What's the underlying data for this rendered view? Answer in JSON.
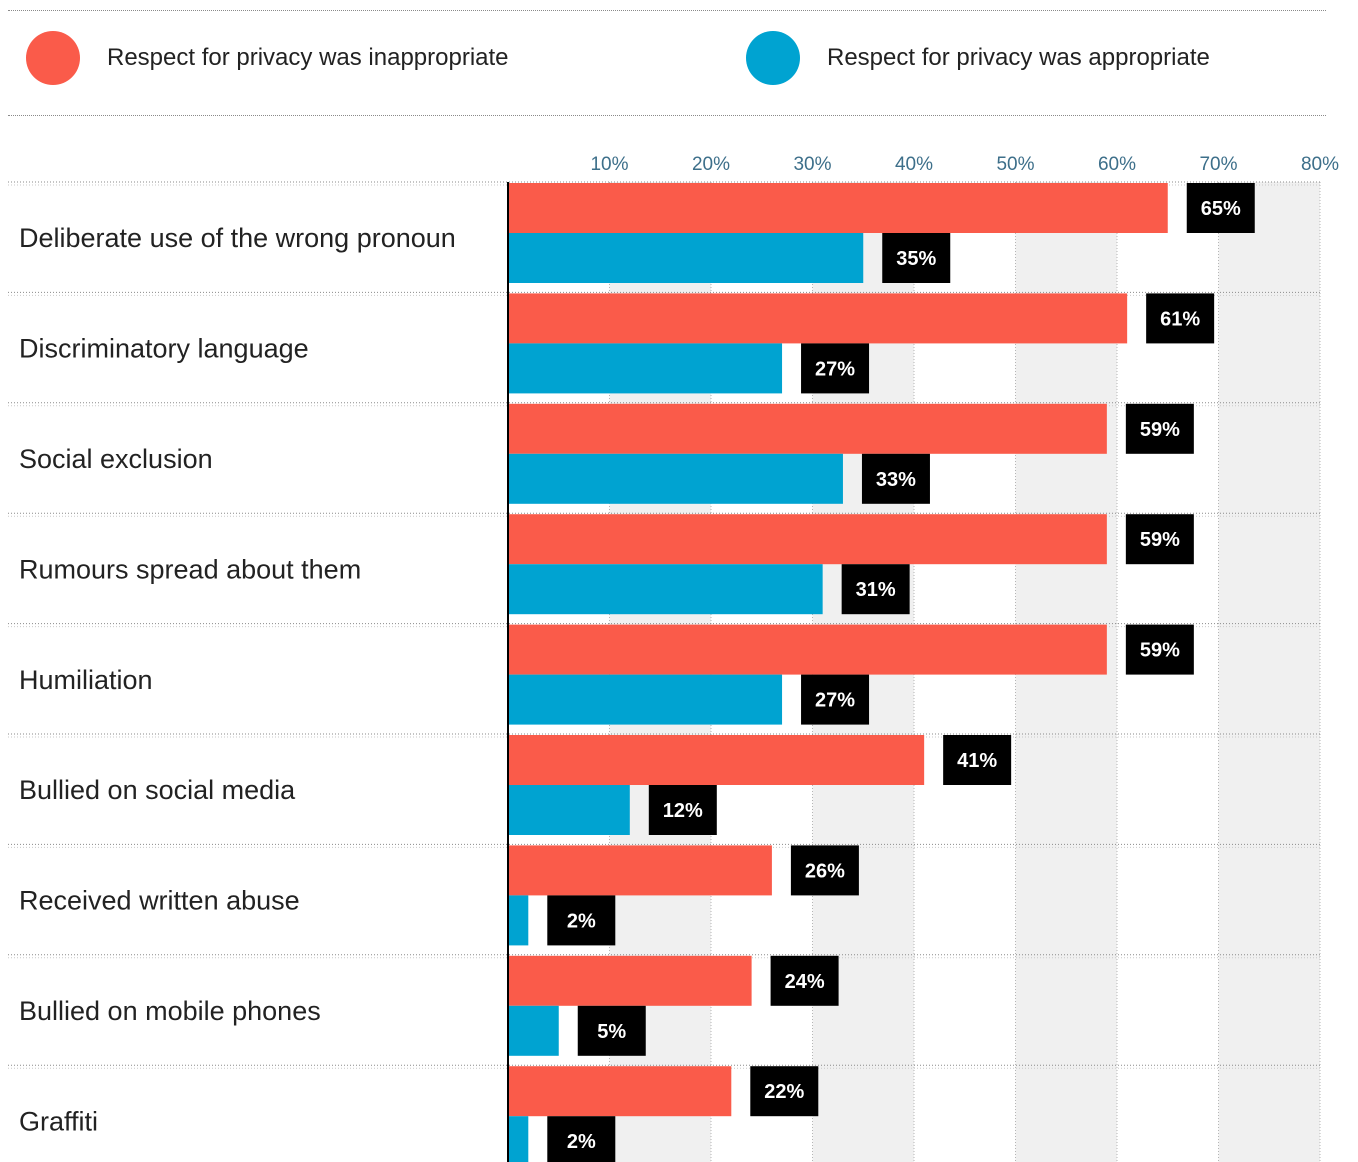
{
  "legend": {
    "items": [
      {
        "label": "Respect for privacy was inappropriate",
        "color": "#fa5b4a"
      },
      {
        "label": "Respect for privacy was appropriate",
        "color": "#00a3d1"
      }
    ]
  },
  "chart_data": {
    "type": "bar",
    "orientation": "horizontal",
    "categories": [
      "Deliberate use of the wrong pronoun",
      "Discriminatory language",
      "Social exclusion",
      "Rumours spread about them",
      "Humiliation",
      "Bullied on social media",
      "Received written abuse",
      "Bullied on mobile phones",
      "Graffiti"
    ],
    "series": [
      {
        "name": "Respect for privacy was inappropriate",
        "color": "#fa5b4a",
        "values": [
          65,
          61,
          59,
          59,
          59,
          41,
          26,
          24,
          22
        ]
      },
      {
        "name": "Respect for privacy was appropriate",
        "color": "#00a3d1",
        "values": [
          35,
          27,
          33,
          31,
          27,
          12,
          2,
          5,
          2
        ]
      }
    ],
    "value_labels": [
      [
        "65%",
        "61%",
        "59%",
        "59%",
        "59%",
        "41%",
        "26%",
        "24%",
        "22%"
      ],
      [
        "35%",
        "27%",
        "33%",
        "31%",
        "27%",
        "12%",
        "2%",
        "5%",
        "2%"
      ]
    ],
    "xticks": [
      "10%",
      "20%",
      "30%",
      "40%",
      "50%",
      "60%",
      "70%",
      "80%"
    ],
    "xlim": [
      0,
      80
    ],
    "title": "",
    "xlabel": "",
    "ylabel": "",
    "grid": "alternating vertical bands",
    "legend_position": "top"
  }
}
